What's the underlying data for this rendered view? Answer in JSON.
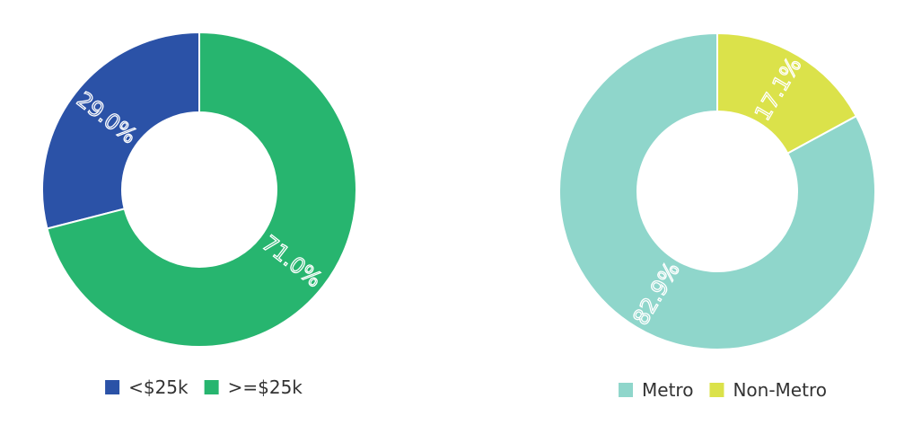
{
  "chart_data": [
    {
      "type": "pie",
      "style": "donut",
      "categories": [
        "<$25k",
        ">=$25k"
      ],
      "values": [
        29.0,
        71.0
      ],
      "labels": [
        "29.0%",
        "71.0%"
      ],
      "colors": [
        "#2b52a7",
        "#27b56f"
      ],
      "title": "",
      "legend": "bottom"
    },
    {
      "type": "pie",
      "style": "donut",
      "categories": [
        "Metro",
        "Non-Metro"
      ],
      "values": [
        82.9,
        17.1
      ],
      "labels": [
        "82.9%",
        "17.1%"
      ],
      "colors": [
        "#8fd6cb",
        "#dbe24a"
      ],
      "title": "",
      "legend": "bottom"
    }
  ]
}
